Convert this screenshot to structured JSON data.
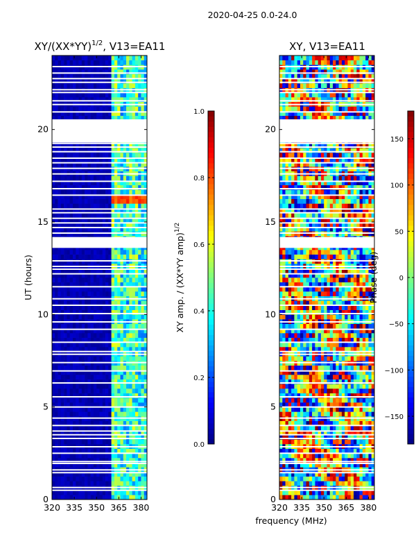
{
  "figure": {
    "suptitle": "2020-04-25 0.0-24.0",
    "xlabel": "frequency (MHz)"
  },
  "colors": {
    "jet_stops": [
      "#00007f",
      "#0000ff",
      "#007fff",
      "#00ffff",
      "#7fff7f",
      "#ffff00",
      "#ff7f00",
      "#ff0000",
      "#7f0000"
    ],
    "background": "#00007f",
    "gap": "#ffffff"
  },
  "chart_data": [
    {
      "type": "heatmap",
      "name": "amplitude-ratio",
      "title_prefix": "XY/(XX*YY)",
      "title_superscript": "1/2",
      "title_suffix": ", V13=EA11",
      "xlabel": "",
      "ylabel": "UT (hours)",
      "xlim": [
        320,
        384
      ],
      "ylim": [
        0,
        24
      ],
      "xticks": [
        "320",
        "335",
        "350",
        "365",
        "380"
      ],
      "xtick_values": [
        320,
        335,
        350,
        365,
        380
      ],
      "yticks": [
        "0",
        "5",
        "10",
        "15",
        "20"
      ],
      "ytick_values": [
        0,
        5,
        10,
        15,
        20
      ],
      "colorbar": {
        "label_prefix": "XY amp. / (XX*YY amp)",
        "label_superscript": "1/2",
        "range": [
          0.0,
          1.0
        ],
        "ticks": [
          "0.0",
          "0.2",
          "0.4",
          "0.6",
          "0.8",
          "1.0"
        ],
        "tick_values": [
          0.0,
          0.2,
          0.4,
          0.6,
          0.8,
          1.0
        ]
      },
      "active_band_mhz": [
        360,
        384
      ],
      "hot_band": {
        "ut_range": [
          15.9,
          16.4
        ],
        "value": 0.75
      }
    },
    {
      "type": "heatmap",
      "name": "xy-phase",
      "title_prefix": "XY, V13=EA11",
      "title_superscript": "",
      "title_suffix": "",
      "xlabel": "",
      "ylabel": "",
      "xlim": [
        320,
        384
      ],
      "ylim": [
        0,
        24
      ],
      "xticks": [
        "320",
        "335",
        "350",
        "365",
        "380"
      ],
      "xtick_values": [
        320,
        335,
        350,
        365,
        380
      ],
      "yticks": [
        "0",
        "5",
        "10",
        "15",
        "20"
      ],
      "ytick_values": [
        0,
        5,
        10,
        15,
        20
      ],
      "colorbar": {
        "label_prefix": "Phase (deg)",
        "label_superscript": "",
        "range": [
          -180,
          180
        ],
        "ticks": [
          "−150",
          "−100",
          "−50",
          "0",
          "50",
          "100",
          "150"
        ],
        "tick_values": [
          -150,
          -100,
          -50,
          0,
          50,
          100,
          150
        ]
      }
    }
  ],
  "flagged_ut_hours": [
    0.5,
    0.65,
    1.45,
    1.6,
    1.95,
    2.05,
    2.5,
    2.85,
    3.3,
    3.5,
    3.7,
    4.0,
    4.4,
    5.0,
    5.55,
    6.3,
    6.95,
    7.4,
    7.85,
    8.0,
    8.5,
    9.2,
    9.6,
    10.05,
    10.5,
    10.85,
    11.5,
    12.2,
    12.45,
    12.6,
    12.9,
    13.75,
    13.85,
    14.15,
    14.4,
    14.7,
    14.95,
    15.2,
    15.5,
    15.7,
    16.45,
    16.8,
    17.2,
    17.6,
    17.9,
    18.2,
    18.45,
    18.8,
    19.05,
    19.25,
    20.95,
    21.35,
    21.55,
    22.0,
    22.15,
    22.55,
    22.75,
    23.05,
    23.4
  ],
  "flagged_ut_ranges": [
    [
      13.6,
      14.15
    ],
    [
      19.3,
      20.55
    ]
  ]
}
